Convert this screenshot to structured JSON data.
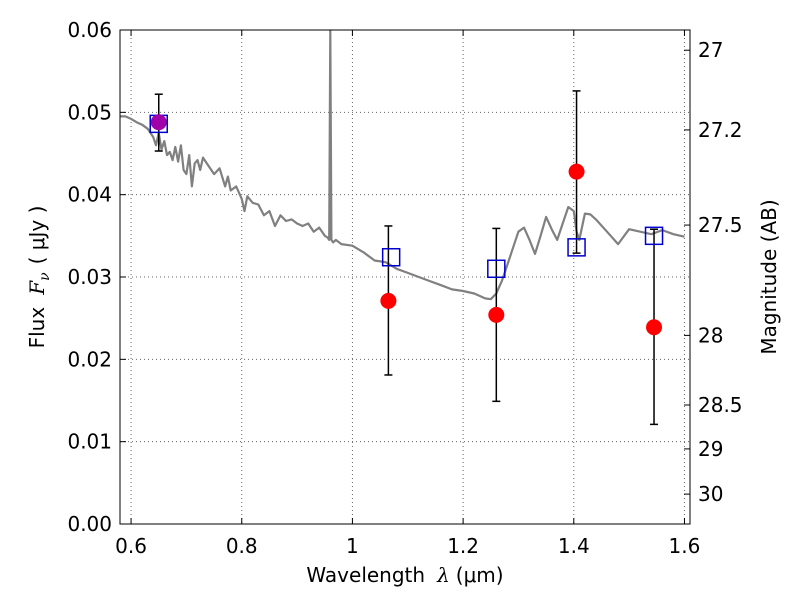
{
  "chart_data": {
    "type": "scatter",
    "xlabel": {
      "prefix": "Wavelength",
      "symbol": "λ",
      "unit": "(μm)"
    },
    "ylabel": {
      "prefix": "Flux",
      "symbol": "F",
      "subscript": "ν",
      "unit": "( μJy )"
    },
    "y2label": "Magnitude (AB)",
    "xlim": [
      0.58,
      1.61
    ],
    "ylim": [
      0.0,
      0.06
    ],
    "grid": true,
    "xticks": [
      0.6,
      0.8,
      1.0,
      1.2,
      1.4,
      1.6
    ],
    "xtick_labels": [
      "0.6",
      "0.8",
      "1",
      "1.2",
      "1.4",
      "1.6"
    ],
    "yticks": [
      0.0,
      0.01,
      0.02,
      0.03,
      0.04,
      0.05,
      0.06
    ],
    "ytick_labels": [
      "0.00",
      "0.01",
      "0.02",
      "0.03",
      "0.04",
      "0.05",
      "0.06"
    ],
    "mag_ticks": [
      27,
      27.2,
      27.5,
      28,
      28.5,
      29,
      30
    ],
    "mag_tick_labels": [
      "27",
      "27.2",
      "27.5",
      "28",
      "28.5",
      "29",
      "30"
    ],
    "colors": {
      "model": "#808080",
      "observed": "#ff0000",
      "model_points": "#0000cc",
      "highlight": "#a000a8",
      "errorbar": "#000000",
      "grid": "#666666"
    },
    "series": [
      {
        "name": "model_spectrum",
        "kind": "line",
        "x": [
          0.58,
          0.59,
          0.6,
          0.61,
          0.62,
          0.63,
          0.64,
          0.645,
          0.65,
          0.655,
          0.66,
          0.665,
          0.67,
          0.675,
          0.68,
          0.685,
          0.69,
          0.695,
          0.7,
          0.705,
          0.71,
          0.715,
          0.72,
          0.725,
          0.73,
          0.74,
          0.75,
          0.76,
          0.77,
          0.775,
          0.78,
          0.79,
          0.8,
          0.805,
          0.81,
          0.82,
          0.83,
          0.84,
          0.85,
          0.86,
          0.87,
          0.88,
          0.89,
          0.9,
          0.91,
          0.92,
          0.93,
          0.94,
          0.95,
          0.955,
          0.958,
          0.96,
          0.962,
          0.965,
          0.97,
          0.98,
          1.0,
          1.02,
          1.04,
          1.06,
          1.08,
          1.1,
          1.12,
          1.14,
          1.16,
          1.18,
          1.2,
          1.22,
          1.24,
          1.25,
          1.26,
          1.27,
          1.28,
          1.29,
          1.3,
          1.31,
          1.32,
          1.33,
          1.34,
          1.35,
          1.36,
          1.37,
          1.38,
          1.39,
          1.4,
          1.405,
          1.41,
          1.42,
          1.43,
          1.44,
          1.46,
          1.48,
          1.5,
          1.52,
          1.54,
          1.56,
          1.58,
          1.6
        ],
        "values": [
          0.0495,
          0.0495,
          0.0492,
          0.0488,
          0.0485,
          0.048,
          0.047,
          0.046,
          0.0475,
          0.0455,
          0.0465,
          0.0448,
          0.0452,
          0.0442,
          0.0458,
          0.044,
          0.046,
          0.043,
          0.0425,
          0.0448,
          0.041,
          0.0438,
          0.0442,
          0.043,
          0.0445,
          0.0435,
          0.0425,
          0.0432,
          0.041,
          0.0422,
          0.0405,
          0.041,
          0.0395,
          0.038,
          0.0398,
          0.039,
          0.0388,
          0.0375,
          0.038,
          0.0362,
          0.0375,
          0.0368,
          0.037,
          0.0365,
          0.0362,
          0.0365,
          0.0355,
          0.036,
          0.035,
          0.0348,
          0.0345,
          0.06,
          0.0345,
          0.0342,
          0.0345,
          0.034,
          0.0338,
          0.033,
          0.032,
          0.0318,
          0.031,
          0.0305,
          0.03,
          0.0295,
          0.029,
          0.0285,
          0.0283,
          0.028,
          0.0274,
          0.0273,
          0.028,
          0.0295,
          0.0315,
          0.0335,
          0.0355,
          0.036,
          0.0345,
          0.0328,
          0.035,
          0.0373,
          0.0358,
          0.0345,
          0.0365,
          0.0385,
          0.038,
          0.0355,
          0.0345,
          0.0377,
          0.0376,
          0.037,
          0.0355,
          0.034,
          0.0358,
          0.0355,
          0.0352,
          0.0357,
          0.0352,
          0.0349
        ]
      },
      {
        "name": "observed_flux",
        "kind": "points_with_errorbars",
        "x": [
          1.065,
          1.26,
          1.405,
          1.545
        ],
        "values": [
          0.0271,
          0.0254,
          0.0428,
          0.0239
        ],
        "err_low": [
          0.0181,
          0.0149,
          0.0329,
          0.0121
        ],
        "err_high": [
          0.0362,
          0.0359,
          0.0526,
          0.0358
        ]
      },
      {
        "name": "model_band_flux",
        "kind": "points",
        "x": [
          0.65,
          1.07,
          1.26,
          1.405,
          1.545
        ],
        "values": [
          0.0486,
          0.0324,
          0.031,
          0.0336,
          0.035
        ]
      },
      {
        "name": "highlight_point",
        "kind": "point_with_errorbar",
        "x": [
          0.65
        ],
        "values": [
          0.0488
        ],
        "err_low": [
          0.0453
        ],
        "err_high": [
          0.0522
        ]
      }
    ]
  }
}
